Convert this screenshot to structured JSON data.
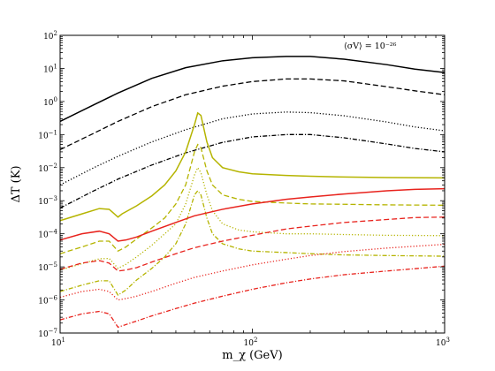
{
  "chart_data": {
    "type": "line",
    "title": "",
    "xlabel": "m_χ (GeV)",
    "ylabel": "ΔT (K)",
    "xscale": "log",
    "yscale": "log",
    "xlim": [
      10,
      1000
    ],
    "ylim": [
      1e-07,
      100
    ],
    "grid": false,
    "legend": "none",
    "annotation": "⟨σV⟩ = 10⁻²⁶",
    "x_tick_labels": [
      {
        "value": 10,
        "mantissa": "10",
        "exp": "1"
      },
      {
        "value": 100,
        "mantissa": "10",
        "exp": "2"
      },
      {
        "value": 1000,
        "mantissa": "10",
        "exp": "3"
      }
    ],
    "y_tick_labels": [
      {
        "value": 1e-07,
        "mantissa": "10",
        "exp": "−7"
      },
      {
        "value": 1e-06,
        "mantissa": "10",
        "exp": "−6"
      },
      {
        "value": 1e-05,
        "mantissa": "10",
        "exp": "−5"
      },
      {
        "value": 0.0001,
        "mantissa": "10",
        "exp": "−4"
      },
      {
        "value": 0.001,
        "mantissa": "10",
        "exp": "−3"
      },
      {
        "value": 0.01,
        "mantissa": "10",
        "exp": "−2"
      },
      {
        "value": 0.1,
        "mantissa": "10",
        "exp": "−1"
      },
      {
        "value": 1,
        "mantissa": "10",
        "exp": "0"
      },
      {
        "value": 10,
        "mantissa": "10",
        "exp": "1"
      },
      {
        "value": 100,
        "mantissa": "10",
        "exp": "2"
      }
    ],
    "series": [
      {
        "color": "#000000",
        "dash": "solid",
        "points": [
          [
            10,
            0.25
          ],
          [
            15,
            0.8
          ],
          [
            20,
            1.8
          ],
          [
            30,
            5
          ],
          [
            45,
            10.5
          ],
          [
            70,
            17
          ],
          [
            100,
            21
          ],
          [
            150,
            23
          ],
          [
            200,
            23
          ],
          [
            300,
            19
          ],
          [
            500,
            13
          ],
          [
            700,
            9.5
          ],
          [
            1000,
            7.5
          ]
        ]
      },
      {
        "color": "#000000",
        "dash": "dashed",
        "points": [
          [
            10,
            0.035
          ],
          [
            15,
            0.11
          ],
          [
            20,
            0.25
          ],
          [
            30,
            0.7
          ],
          [
            45,
            1.6
          ],
          [
            70,
            2.9
          ],
          [
            100,
            4.0
          ],
          [
            150,
            4.8
          ],
          [
            200,
            4.8
          ],
          [
            300,
            4.2
          ],
          [
            500,
            2.8
          ],
          [
            700,
            2.1
          ],
          [
            1000,
            1.6
          ]
        ]
      },
      {
        "color": "#000000",
        "dash": "dotted",
        "points": [
          [
            10,
            0.003
          ],
          [
            15,
            0.01
          ],
          [
            20,
            0.022
          ],
          [
            30,
            0.06
          ],
          [
            45,
            0.14
          ],
          [
            70,
            0.3
          ],
          [
            100,
            0.42
          ],
          [
            150,
            0.48
          ],
          [
            200,
            0.46
          ],
          [
            300,
            0.37
          ],
          [
            500,
            0.24
          ],
          [
            700,
            0.17
          ],
          [
            1000,
            0.13
          ]
        ]
      },
      {
        "color": "#000000",
        "dash": "dashdot",
        "points": [
          [
            10,
            0.0006
          ],
          [
            15,
            0.002
          ],
          [
            20,
            0.0045
          ],
          [
            30,
            0.012
          ],
          [
            45,
            0.028
          ],
          [
            70,
            0.058
          ],
          [
            100,
            0.085
          ],
          [
            150,
            0.1
          ],
          [
            200,
            0.1
          ],
          [
            300,
            0.08
          ],
          [
            500,
            0.052
          ],
          [
            700,
            0.038
          ],
          [
            1000,
            0.03
          ]
        ]
      },
      {
        "color": "#b5b400",
        "dash": "solid",
        "points": [
          [
            10,
            0.00025
          ],
          [
            13,
            0.0004
          ],
          [
            16,
            0.00058
          ],
          [
            18,
            0.00055
          ],
          [
            20,
            0.00032
          ],
          [
            21,
            0.0004
          ],
          [
            25,
            0.0007
          ],
          [
            30,
            0.0014
          ],
          [
            35,
            0.003
          ],
          [
            40,
            0.008
          ],
          [
            45,
            0.03
          ],
          [
            50,
            0.2
          ],
          [
            52,
            0.45
          ],
          [
            54,
            0.38
          ],
          [
            58,
            0.06
          ],
          [
            62,
            0.02
          ],
          [
            70,
            0.01
          ],
          [
            85,
            0.0075
          ],
          [
            100,
            0.0065
          ],
          [
            150,
            0.0058
          ],
          [
            200,
            0.0055
          ],
          [
            300,
            0.0052
          ],
          [
            500,
            0.005
          ],
          [
            1000,
            0.0049
          ]
        ]
      },
      {
        "color": "#b5b400",
        "dash": "dashed",
        "points": [
          [
            10,
            2.5e-05
          ],
          [
            13,
            4e-05
          ],
          [
            16,
            6e-05
          ],
          [
            18,
            6e-05
          ],
          [
            20,
            3e-05
          ],
          [
            22,
            4e-05
          ],
          [
            25,
            7e-05
          ],
          [
            30,
            0.00015
          ],
          [
            35,
            0.0003
          ],
          [
            40,
            0.0008
          ],
          [
            45,
            0.003
          ],
          [
            50,
            0.03
          ],
          [
            52,
            0.05
          ],
          [
            54,
            0.04
          ],
          [
            58,
            0.008
          ],
          [
            62,
            0.003
          ],
          [
            70,
            0.0015
          ],
          [
            85,
            0.0011
          ],
          [
            100,
            0.00095
          ],
          [
            150,
            0.00085
          ],
          [
            200,
            0.0008
          ],
          [
            300,
            0.00078
          ],
          [
            500,
            0.00075
          ],
          [
            1000,
            0.00073
          ]
        ]
      },
      {
        "color": "#b5b400",
        "dash": "dotted",
        "points": [
          [
            10,
            8e-06
          ],
          [
            13,
            1.25e-05
          ],
          [
            16,
            1.75e-05
          ],
          [
            18,
            1.8e-05
          ],
          [
            20,
            9e-06
          ],
          [
            22,
            1.2e-05
          ],
          [
            25,
            2e-05
          ],
          [
            30,
            4.5e-05
          ],
          [
            35,
            0.0001
          ],
          [
            40,
            0.0002
          ],
          [
            45,
            0.0008
          ],
          [
            50,
            0.006
          ],
          [
            52,
            0.01
          ],
          [
            54,
            0.007
          ],
          [
            58,
            0.0015
          ],
          [
            62,
            0.0005
          ],
          [
            70,
            0.0002
          ],
          [
            85,
            0.00013
          ],
          [
            100,
            0.000115
          ],
          [
            150,
            0.0001
          ],
          [
            200,
            0.0001
          ],
          [
            300,
            9.5e-05
          ],
          [
            500,
            9e-05
          ],
          [
            1000,
            8.8e-05
          ]
        ]
      },
      {
        "color": "#b5b400",
        "dash": "dashdot",
        "points": [
          [
            10,
            1.8e-06
          ],
          [
            13,
            2.8e-06
          ],
          [
            16,
            3.8e-06
          ],
          [
            18,
            3.8e-06
          ],
          [
            20,
            1.4e-06
          ],
          [
            22,
            2e-06
          ],
          [
            25,
            4e-06
          ],
          [
            30,
            9e-06
          ],
          [
            35,
            2e-05
          ],
          [
            40,
            5e-05
          ],
          [
            45,
            0.0002
          ],
          [
            50,
            0.0015
          ],
          [
            52,
            0.002
          ],
          [
            54,
            0.0015
          ],
          [
            58,
            0.0003
          ],
          [
            62,
            0.0001
          ],
          [
            70,
            5e-05
          ],
          [
            85,
            3.5e-05
          ],
          [
            100,
            3e-05
          ],
          [
            150,
            2.7e-05
          ],
          [
            200,
            2.5e-05
          ],
          [
            300,
            2.3e-05
          ],
          [
            500,
            2.2e-05
          ],
          [
            1000,
            2.1e-05
          ]
        ]
      },
      {
        "color": "#e8231d",
        "dash": "solid",
        "points": [
          [
            10,
            6.5e-05
          ],
          [
            13,
            0.0001
          ],
          [
            16,
            0.00012
          ],
          [
            18,
            0.0001
          ],
          [
            20,
            6e-05
          ],
          [
            22,
            6.5e-05
          ],
          [
            25,
            8e-05
          ],
          [
            30,
            0.00012
          ],
          [
            40,
            0.00022
          ],
          [
            50,
            0.00035
          ],
          [
            70,
            0.00055
          ],
          [
            100,
            0.0008
          ],
          [
            150,
            0.0011
          ],
          [
            200,
            0.0013
          ],
          [
            300,
            0.0016
          ],
          [
            500,
            0.002
          ],
          [
            700,
            0.0022
          ],
          [
            1000,
            0.0023
          ]
        ]
      },
      {
        "color": "#e8231d",
        "dash": "dashed",
        "points": [
          [
            10,
            8.5e-06
          ],
          [
            13,
            1.3e-05
          ],
          [
            16,
            1.55e-05
          ],
          [
            18,
            1.3e-05
          ],
          [
            20,
            7.5e-06
          ],
          [
            22,
            8e-06
          ],
          [
            25,
            9.5e-06
          ],
          [
            30,
            1.4e-05
          ],
          [
            40,
            2.5e-05
          ],
          [
            50,
            3.8e-05
          ],
          [
            70,
            6e-05
          ],
          [
            100,
            9e-05
          ],
          [
            150,
            0.00014
          ],
          [
            200,
            0.00017
          ],
          [
            300,
            0.00022
          ],
          [
            500,
            0.00027
          ],
          [
            700,
            0.00031
          ],
          [
            1000,
            0.00032
          ]
        ]
      },
      {
        "color": "#e8231d",
        "dash": "dotted",
        "points": [
          [
            10,
            1.2e-06
          ],
          [
            13,
            1.8e-06
          ],
          [
            16,
            2.1e-06
          ],
          [
            18,
            1.8e-06
          ],
          [
            20,
            1e-06
          ],
          [
            22,
            1.1e-06
          ],
          [
            25,
            1.3e-06
          ],
          [
            30,
            1.8e-06
          ],
          [
            40,
            3.2e-06
          ],
          [
            50,
            4.8e-06
          ],
          [
            70,
            7.5e-06
          ],
          [
            100,
            1.15e-05
          ],
          [
            150,
            1.7e-05
          ],
          [
            200,
            2.2e-05
          ],
          [
            300,
            2.9e-05
          ],
          [
            500,
            3.7e-05
          ],
          [
            700,
            4.2e-05
          ],
          [
            1000,
            4.8e-05
          ]
        ]
      },
      {
        "color": "#e8231d",
        "dash": "dashdot",
        "points": [
          [
            10,
            2.5e-07
          ],
          [
            13,
            3.8e-07
          ],
          [
            16,
            4.5e-07
          ],
          [
            18,
            3.8e-07
          ],
          [
            20,
            1.5e-07
          ],
          [
            22,
            1.8e-07
          ],
          [
            25,
            2.3e-07
          ],
          [
            30,
            3.3e-07
          ],
          [
            40,
            5.5e-07
          ],
          [
            50,
            8e-07
          ],
          [
            70,
            1.3e-06
          ],
          [
            100,
            2.1e-06
          ],
          [
            150,
            3.3e-06
          ],
          [
            200,
            4.3e-06
          ],
          [
            300,
            5.8e-06
          ],
          [
            500,
            7.5e-06
          ],
          [
            700,
            8.8e-06
          ],
          [
            1000,
            1.05e-05
          ]
        ]
      }
    ]
  }
}
